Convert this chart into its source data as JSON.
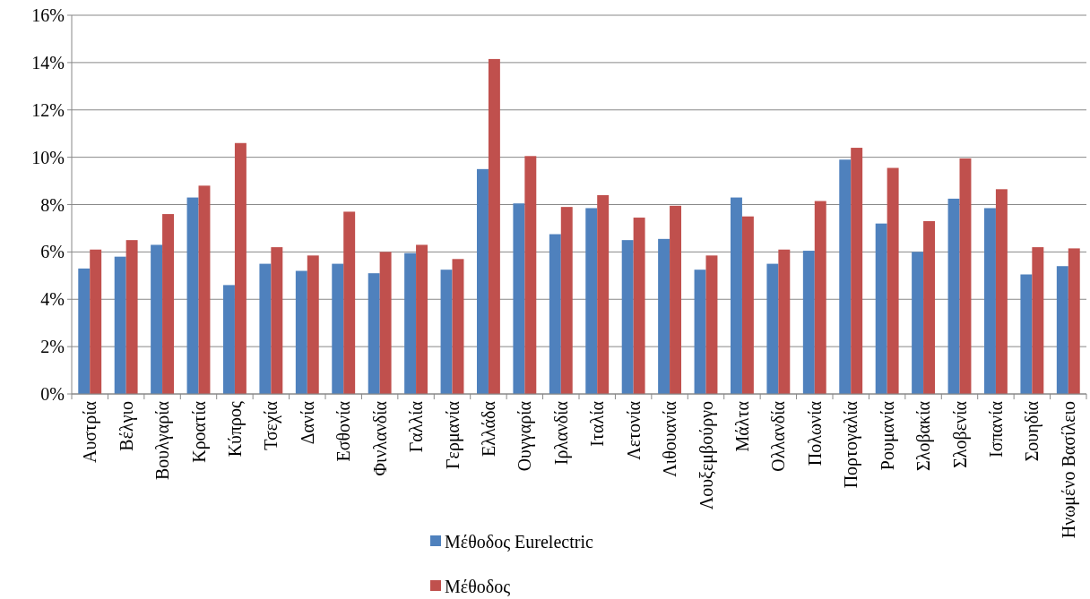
{
  "chart_data": {
    "type": "bar",
    "categories": [
      "Αυστρία",
      "Βέλγιο",
      "Βουλγαρία",
      "Κροατία",
      "Κύπρος",
      "Τσεχία",
      "Δανία",
      "Εσθονία",
      "Φινλανδία",
      "Γαλλία",
      "Γερμανία",
      "Ελλάδα",
      "Ουγγαρία",
      "Ιρλανδία",
      "Ιταλία",
      "Λετονία",
      "Λιθουανία",
      "Λουξεμβούργο",
      "Μάλτα",
      "Ολλανδία",
      "Πολωνία",
      "Πορτογαλία",
      "Ρουμανία",
      "Σλοβακία",
      "Σλοβενία",
      "Ισπανία",
      "Σουηδία",
      "Ηνωμένο Βασίλειο"
    ],
    "series": [
      {
        "name": "Μέθοδος Eurelectric",
        "color": "#4f81bd",
        "values": [
          5.3,
          5.8,
          6.3,
          8.3,
          4.6,
          5.5,
          5.2,
          5.5,
          5.1,
          5.95,
          5.25,
          9.5,
          8.05,
          6.75,
          7.85,
          6.5,
          6.55,
          5.25,
          8.3,
          5.5,
          6.05,
          9.9,
          7.2,
          6.0,
          8.25,
          7.85,
          5.05,
          5.4
        ]
      },
      {
        "name": "Μέθοδος",
        "color": "#c0504d",
        "values": [
          6.1,
          6.5,
          7.6,
          8.8,
          10.6,
          6.2,
          5.85,
          7.7,
          6.0,
          6.3,
          5.7,
          14.15,
          10.05,
          7.9,
          8.4,
          7.45,
          7.95,
          5.85,
          7.5,
          6.1,
          8.15,
          10.4,
          9.55,
          7.3,
          9.95,
          8.65,
          6.2,
          6.15
        ]
      }
    ],
    "ylim": [
      0,
      16
    ],
    "yticks": [
      {
        "value": 0,
        "label": "0%"
      },
      {
        "value": 2,
        "label": "2%"
      },
      {
        "value": 4,
        "label": "4%"
      },
      {
        "value": 6,
        "label": "6%"
      },
      {
        "value": 8,
        "label": "8%"
      },
      {
        "value": 10,
        "label": "10%"
      },
      {
        "value": 12,
        "label": "12%"
      },
      {
        "value": 14,
        "label": "14%"
      },
      {
        "value": 16,
        "label": "16%"
      }
    ],
    "grid": "y",
    "legend": "bottom"
  }
}
